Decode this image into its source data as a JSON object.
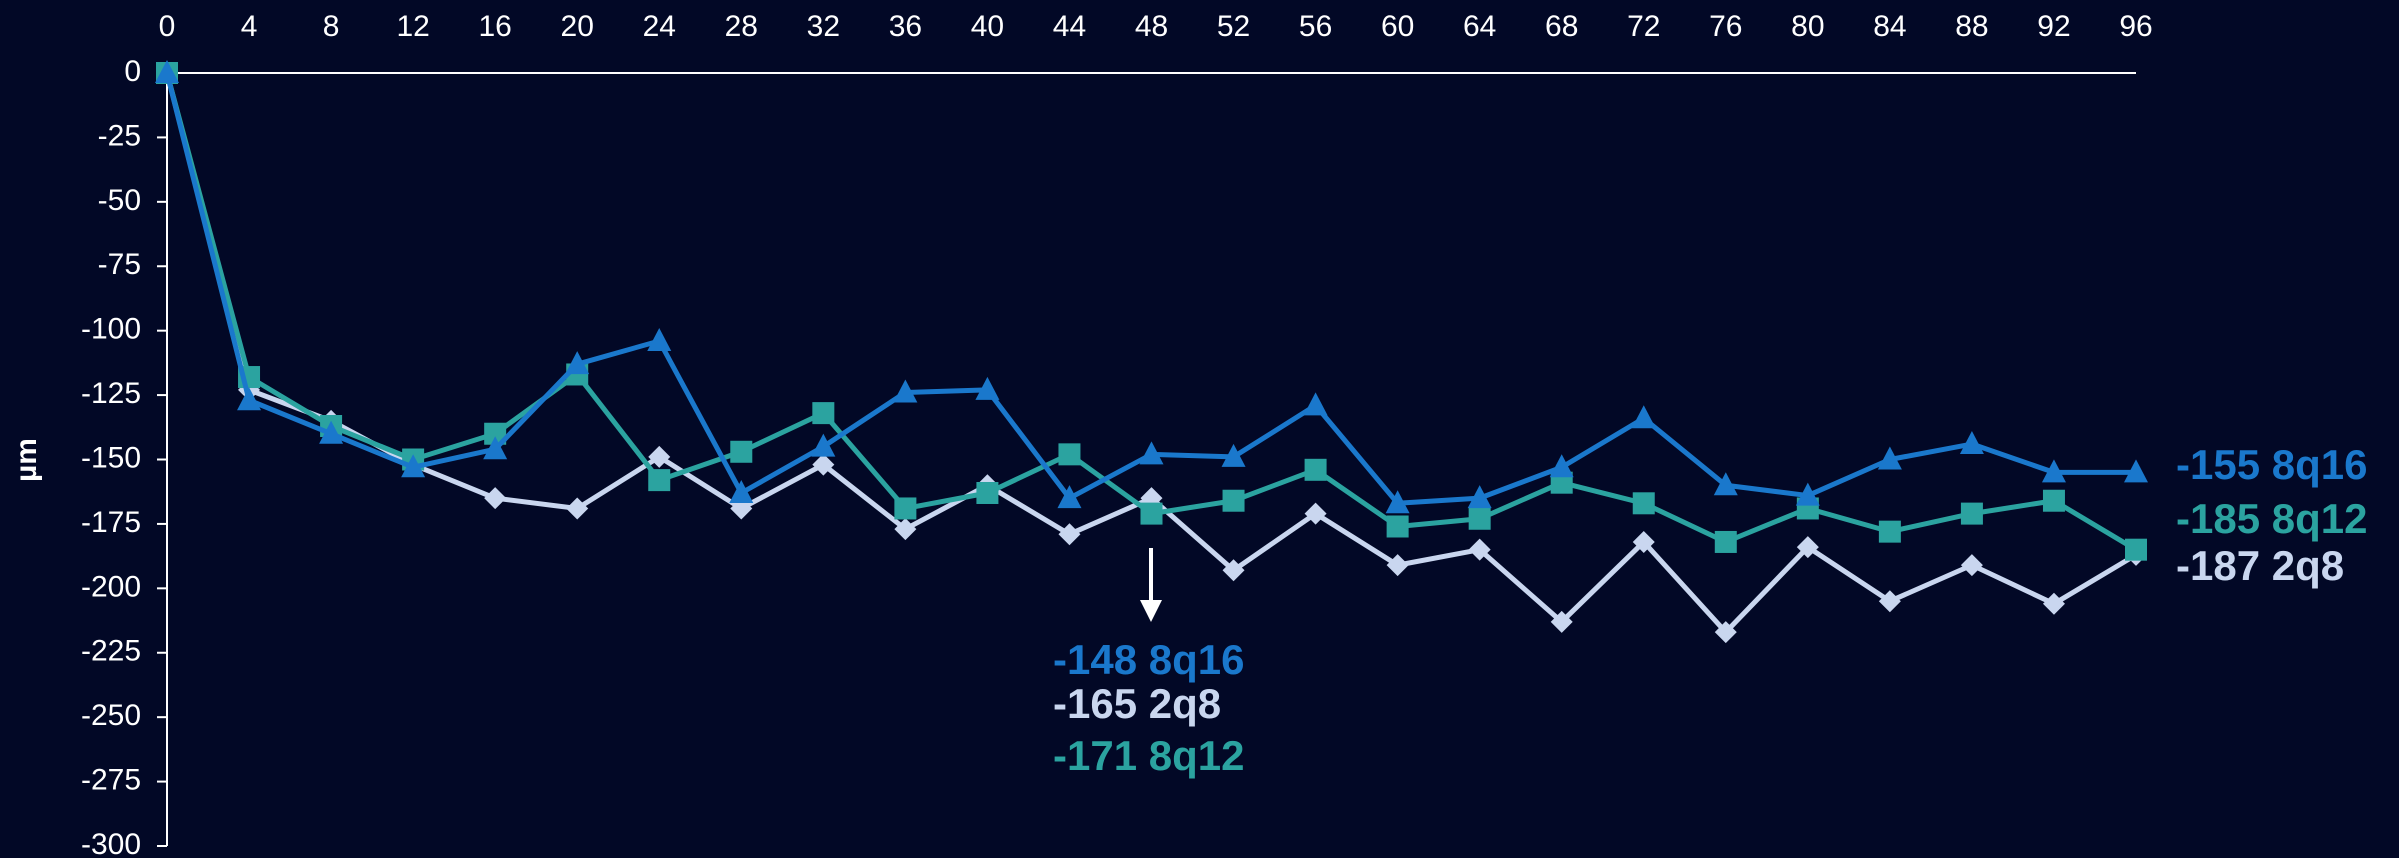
{
  "chart_data": {
    "type": "line",
    "y_label": "µm",
    "x": [
      0,
      4,
      8,
      12,
      16,
      20,
      24,
      28,
      32,
      36,
      40,
      44,
      48,
      52,
      56,
      60,
      64,
      68,
      72,
      76,
      80,
      84,
      88,
      92,
      96
    ],
    "xlim": [
      0,
      96
    ],
    "xticks": [
      0,
      4,
      8,
      12,
      16,
      20,
      24,
      28,
      32,
      36,
      40,
      44,
      48,
      52,
      56,
      60,
      64,
      68,
      72,
      76,
      80,
      84,
      88,
      92,
      96
    ],
    "ylim": [
      -300,
      0
    ],
    "yticks": [
      0,
      -25,
      -50,
      -75,
      -100,
      -125,
      -150,
      -175,
      -200,
      -225,
      -250,
      -275,
      -300
    ],
    "series": [
      {
        "color": "#c9d6ef",
        "marker": "diamond",
        "values": [
          0,
          -123,
          -135,
          -152,
          -165,
          -169,
          -149,
          -169,
          -152,
          -177,
          -160,
          -179,
          -165,
          -193,
          -171,
          -191,
          -185,
          -213,
          -182,
          -217,
          -184,
          -205,
          -191,
          -206,
          -187
        ]
      },
      {
        "color": "#2ba3a0",
        "marker": "square",
        "values": [
          0,
          -118,
          -137,
          -150,
          -140,
          -117,
          -158,
          -147,
          -132,
          -169,
          -163,
          -148,
          -171,
          -166,
          -154,
          -176,
          -173,
          -159,
          -167,
          -182,
          -169,
          -178,
          -171,
          -166,
          -185
        ]
      },
      {
        "color": "#1a78cc",
        "marker": "triangle",
        "values": [
          0,
          -127,
          -140,
          -153,
          -146,
          -113,
          -104,
          -163,
          -145,
          -124,
          -123,
          -165,
          -148,
          -149,
          -129,
          -167,
          -165,
          -153,
          -134,
          -160,
          -164,
          -150,
          -144,
          -155,
          -155
        ]
      }
    ],
    "annotations": [
      {
        "text": "-148 8q16",
        "color": "#1a78cc"
      },
      {
        "text": "-165 2q8",
        "color": "#c9d6ef"
      },
      {
        "text": "-171 8q12",
        "color": "#2ba3a0"
      }
    ],
    "end_labels": [
      {
        "text": "-155 8q16",
        "color": "#1a78cc"
      },
      {
        "text": "-185 8q12",
        "color": "#2ba3a0"
      },
      {
        "text": "-187 2q8",
        "color": "#c9d6ef"
      }
    ]
  }
}
